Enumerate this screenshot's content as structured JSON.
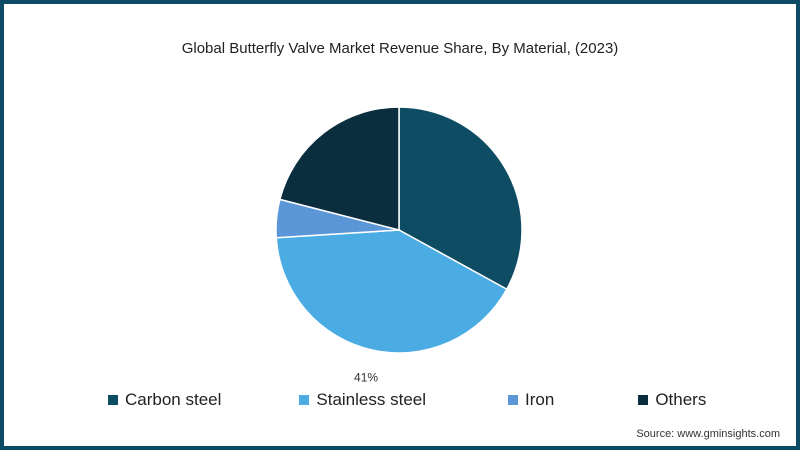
{
  "chart_data": {
    "type": "pie",
    "title": "Global Butterfly Valve Market Revenue Share, By Material, (2023)",
    "categories": [
      "Carbon steel",
      "Stainless steel",
      "Iron",
      "Others"
    ],
    "values": [
      33,
      41,
      5,
      21
    ],
    "colors": [
      "#0e4c64",
      "#4aace2",
      "#5b96d6",
      "#0b2e3f"
    ],
    "data_labels": [
      "",
      "41%",
      "",
      ""
    ],
    "legend_position": "bottom"
  },
  "source": "Source: www.gminsights.com"
}
